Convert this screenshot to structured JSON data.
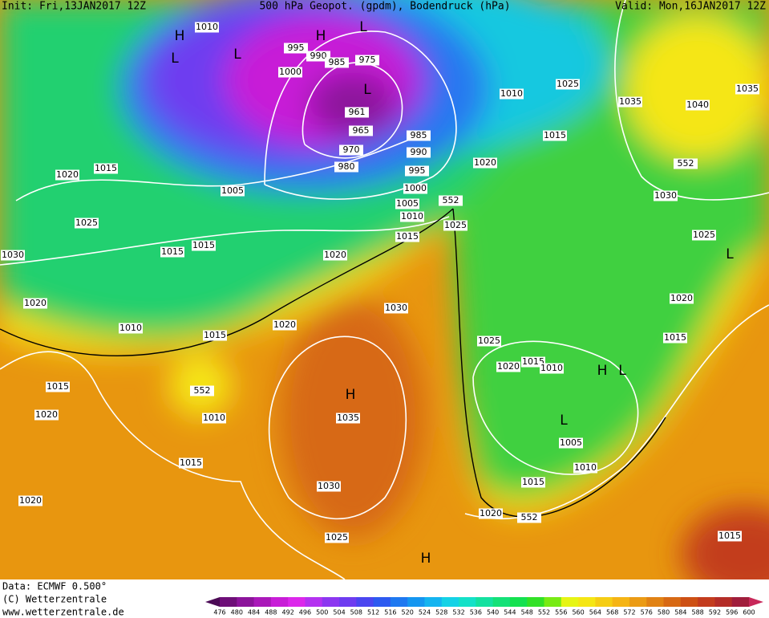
{
  "header": {
    "init": "Init: Fri,13JAN2017 12Z",
    "title": "500 hPa Geopot. (gpdm), Bodendruck (hPa)",
    "valid": "Valid: Mon,16JAN2017 12Z"
  },
  "footer": {
    "data": "Data: ECMWF  0.500°",
    "copyright": "(C) Wetterzentrale",
    "url": "www.wetterzentrale.de"
  },
  "colorbar": {
    "labels": [
      476,
      480,
      484,
      488,
      492,
      496,
      500,
      504,
      508,
      512,
      516,
      520,
      524,
      528,
      532,
      536,
      540,
      544,
      548,
      552,
      556,
      560,
      564,
      568,
      572,
      576,
      580,
      584,
      588,
      592,
      596,
      600
    ],
    "colors": [
      "#4b0a55",
      "#6e0f78",
      "#8c149b",
      "#aa19b9",
      "#c81ed7",
      "#dc28eb",
      "#b432f0",
      "#8c37f0",
      "#6e3cf0",
      "#4b46f0",
      "#2d5af0",
      "#1e78f0",
      "#1496f0",
      "#14b4f0",
      "#14d2e6",
      "#14e1c8",
      "#14e1a0",
      "#14e178",
      "#14e150",
      "#32e128",
      "#78eb14",
      "#e6f514",
      "#f5e614",
      "#f5cd14",
      "#f5b414",
      "#eb9b14",
      "#e18214",
      "#d76914",
      "#cd5014",
      "#c33c1e",
      "#b42d28",
      "#a01e3c",
      "#c8285a"
    ]
  },
  "isobar_labels": [
    1010,
    995,
    990,
    985,
    975,
    1000,
    961,
    965,
    970,
    980,
    1010,
    1015,
    985,
    990,
    995,
    1000,
    1005,
    1010,
    1015,
    1020,
    1025,
    552,
    1005,
    1015,
    1020,
    1025,
    1015,
    1015,
    1030,
    1020,
    1020,
    1010,
    1015,
    1020,
    1030,
    1025,
    1035,
    1040,
    1035,
    552,
    1030,
    1025,
    1020,
    1015,
    1025,
    1020,
    1015,
    1010,
    1005,
    1010,
    1015,
    1020,
    552,
    1015,
    1020,
    552,
    1010,
    1015,
    1035,
    1030,
    1025,
    1020,
    1015
  ],
  "pressure_centers": [
    "H",
    "L",
    "L",
    "H",
    "L",
    "L",
    "H",
    "H",
    "L",
    "L",
    "H",
    "L"
  ]
}
